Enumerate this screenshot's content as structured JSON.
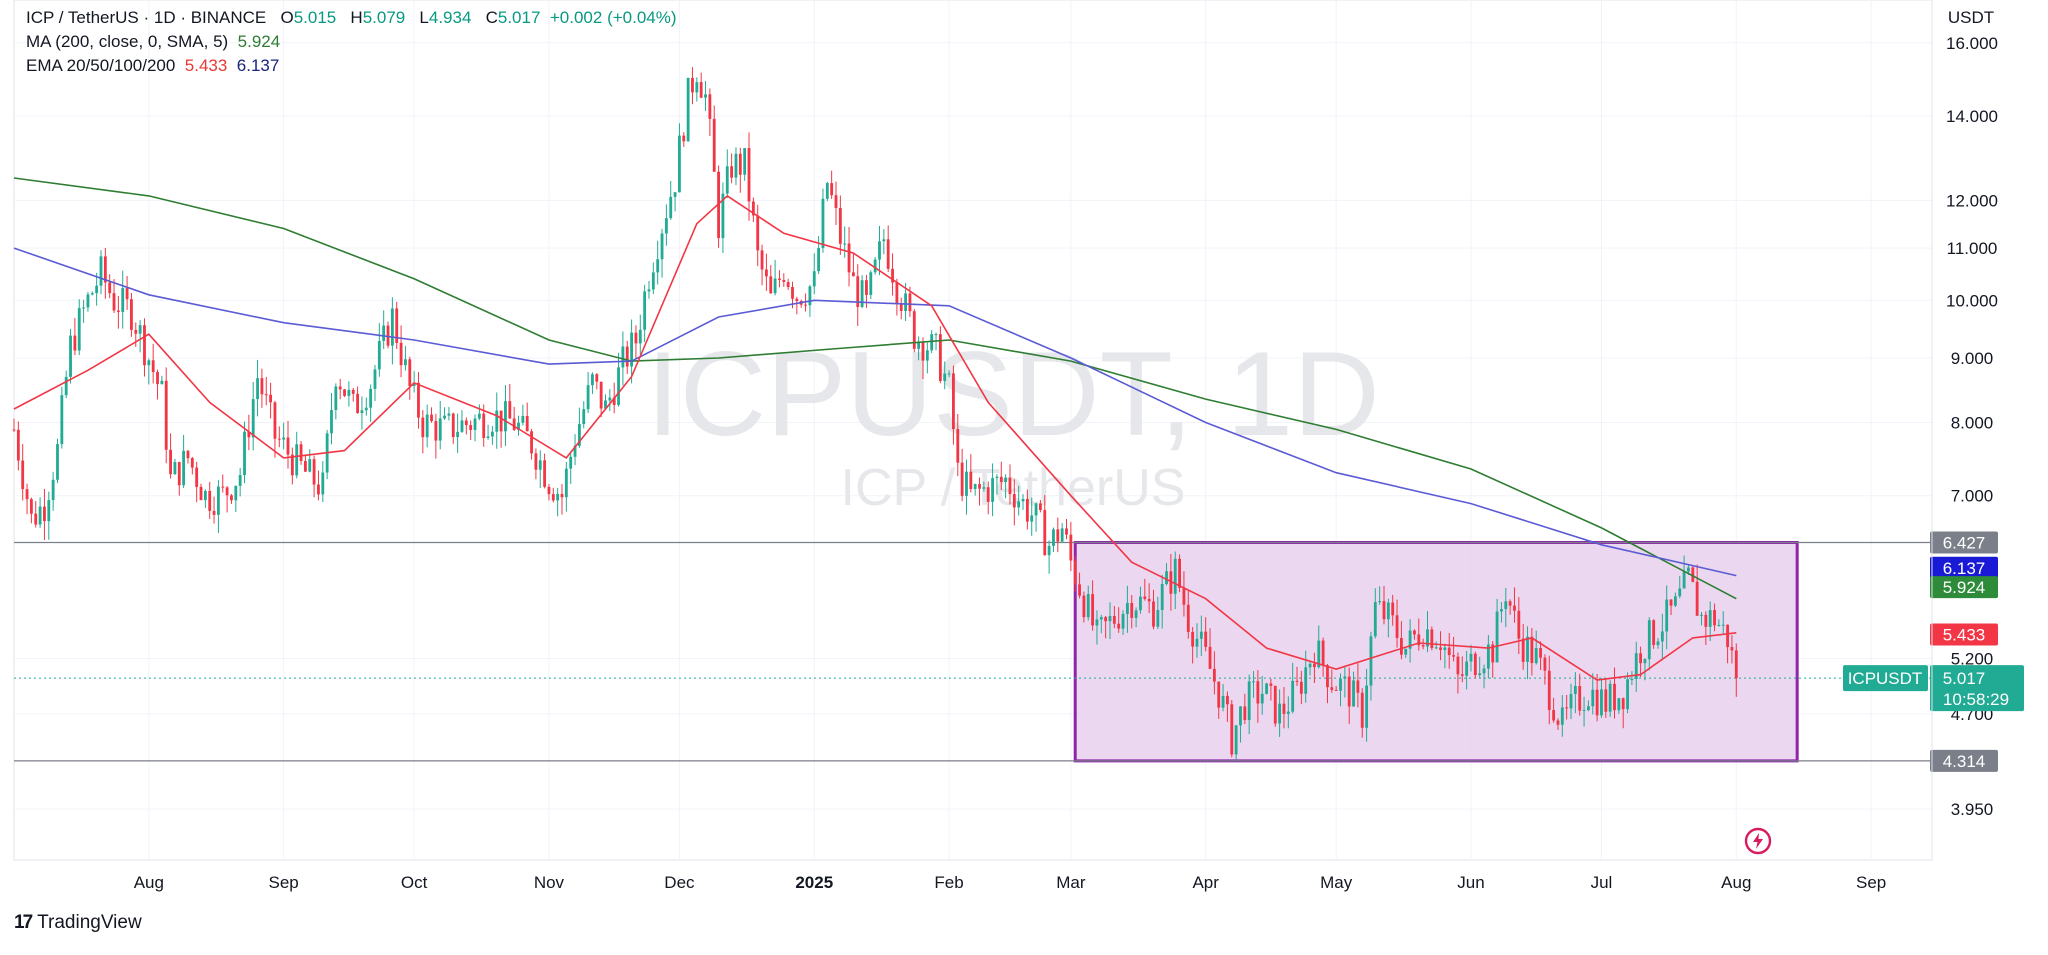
{
  "header": {
    "symbol": "ICP / TetherUS · 1D · BINANCE",
    "o_label": "O",
    "o_value": "5.015",
    "h_label": "H",
    "h_value": "5.079",
    "l_label": "L",
    "l_value": "4.934",
    "c_label": "C",
    "c_value": "5.017",
    "change": "+0.002 (+0.04%)",
    "ma_label": "MA (200, close, 0, SMA, 5)",
    "ma_value": "5.924",
    "ema_label": "EMA 20/50/100/200",
    "ema_value_1": "5.433",
    "ema_value_2": "6.137"
  },
  "watermark": {
    "title": "ICPUSDT, 1D",
    "subtitle": "ICP / TetherUS"
  },
  "footer": {
    "brand": "TradingView",
    "brand_mark": "17"
  },
  "colors": {
    "up": "#22ab94",
    "down": "#f23645",
    "ema20": "#f23645",
    "ema_blue": "#5b5bd6",
    "ma200": "#2e7d32",
    "range_box_fill": "#e9d3ee",
    "range_box_border": "#8e24aa",
    "ticker_badge": "#22ab94",
    "gray_badge": "#7b7f89",
    "blue_badge": "#1a1ad6",
    "green_badge": "#2e8b3a",
    "red_badge": "#f23645"
  },
  "chart_data": {
    "type": "candlestick",
    "title": "ICP / TetherUS · 1D · BINANCE",
    "y_unit": "USDT",
    "y_scale": "log",
    "ylim": [
      3.6,
      17.3
    ],
    "x_start": "2024-07-01",
    "x_end": "2025-09-15",
    "y_ticks": [
      "16.000",
      "14.000",
      "12.000",
      "11.000",
      "10.000",
      "9.000",
      "8.000",
      "7.000",
      "5.200",
      "4.700",
      "3.950"
    ],
    "y_tick_values": [
      16,
      14,
      12,
      11,
      10,
      9,
      8,
      7,
      5.2,
      4.7,
      3.95
    ],
    "x_tick_labels": [
      "Aug",
      "Sep",
      "Oct",
      "Nov",
      "Dec",
      "2025",
      "Feb",
      "Mar",
      "Apr",
      "May",
      "Jun",
      "Jul",
      "Aug",
      "Sep"
    ],
    "x_tick_dates": [
      "2024-08-01",
      "2024-09-01",
      "2024-10-01",
      "2024-11-01",
      "2024-12-01",
      "2025-01-01",
      "2025-02-01",
      "2025-03-01",
      "2025-04-01",
      "2025-05-01",
      "2025-06-01",
      "2025-07-01",
      "2025-08-01",
      "2025-09-01"
    ],
    "close_path": [
      [
        "2024-07-01",
        7.9
      ],
      [
        "2024-07-05",
        6.7
      ],
      [
        "2024-07-08",
        6.9
      ],
      [
        "2024-07-11",
        7.6
      ],
      [
        "2024-07-14",
        9.2
      ],
      [
        "2024-07-18",
        10.0
      ],
      [
        "2024-07-21",
        10.5
      ],
      [
        "2024-07-24",
        10.0
      ],
      [
        "2024-07-28",
        9.8
      ],
      [
        "2024-08-01",
        9.0
      ],
      [
        "2024-08-04",
        8.4
      ],
      [
        "2024-08-06",
        7.2
      ],
      [
        "2024-08-10",
        7.5
      ],
      [
        "2024-08-14",
        7.0
      ],
      [
        "2024-08-18",
        7.0
      ],
      [
        "2024-08-22",
        7.3
      ],
      [
        "2024-08-26",
        8.7
      ],
      [
        "2024-08-30",
        7.8
      ],
      [
        "2024-09-03",
        7.5
      ],
      [
        "2024-09-06",
        7.3
      ],
      [
        "2024-09-10",
        7.1
      ],
      [
        "2024-09-13",
        8.8
      ],
      [
        "2024-09-17",
        8.2
      ],
      [
        "2024-09-21",
        8.6
      ],
      [
        "2024-09-26",
        9.7
      ],
      [
        "2024-09-30",
        8.5
      ],
      [
        "2024-10-03",
        8.0
      ],
      [
        "2024-10-08",
        7.9
      ],
      [
        "2024-10-14",
        8.0
      ],
      [
        "2024-10-19",
        8.1
      ],
      [
        "2024-10-24",
        8.0
      ],
      [
        "2024-10-28",
        7.7
      ],
      [
        "2024-11-01",
        7.2
      ],
      [
        "2024-11-04",
        7.0
      ],
      [
        "2024-11-07",
        7.8
      ],
      [
        "2024-11-11",
        8.6
      ],
      [
        "2024-11-14",
        8.2
      ],
      [
        "2024-11-18",
        8.9
      ],
      [
        "2024-11-21",
        9.3
      ],
      [
        "2024-11-24",
        10.5
      ],
      [
        "2024-11-27",
        11.5
      ],
      [
        "2024-11-30",
        12.5
      ],
      [
        "2024-12-03",
        14.5
      ],
      [
        "2024-12-05",
        15.3
      ],
      [
        "2024-12-07",
        14.5
      ],
      [
        "2024-12-10",
        11.5
      ],
      [
        "2024-12-13",
        12.8
      ],
      [
        "2024-12-16",
        12.8
      ],
      [
        "2024-12-19",
        10.8
      ],
      [
        "2024-12-22",
        10.0
      ],
      [
        "2024-12-25",
        10.6
      ],
      [
        "2024-12-28",
        10.1
      ],
      [
        "2025-01-01",
        10.3
      ],
      [
        "2025-01-04",
        12.4
      ],
      [
        "2025-01-07",
        11.2
      ],
      [
        "2025-01-10",
        10.3
      ],
      [
        "2025-01-13",
        9.9
      ],
      [
        "2025-01-17",
        11.2
      ],
      [
        "2025-01-20",
        10.3
      ],
      [
        "2025-01-24",
        9.4
      ],
      [
        "2025-01-29",
        9.1
      ],
      [
        "2025-02-01",
        8.5
      ],
      [
        "2025-02-03",
        7.3
      ],
      [
        "2025-02-06",
        7.0
      ],
      [
        "2025-02-10",
        7.1
      ],
      [
        "2025-02-14",
        7.2
      ],
      [
        "2025-02-18",
        6.9
      ],
      [
        "2025-02-21",
        6.7
      ],
      [
        "2025-02-24",
        6.4
      ],
      [
        "2025-02-27",
        6.6
      ],
      [
        "2025-03-01",
        6.2
      ],
      [
        "2025-03-04",
        5.8
      ],
      [
        "2025-03-07",
        5.4
      ],
      [
        "2025-03-11",
        5.6
      ],
      [
        "2025-03-15",
        5.8
      ],
      [
        "2025-03-20",
        5.7
      ],
      [
        "2025-03-25",
        6.1
      ],
      [
        "2025-03-28",
        5.6
      ],
      [
        "2025-04-01",
        5.2
      ],
      [
        "2025-04-04",
        4.9
      ],
      [
        "2025-04-07",
        4.5
      ],
      [
        "2025-04-10",
        4.8
      ],
      [
        "2025-04-14",
        4.9
      ],
      [
        "2025-04-18",
        4.7
      ],
      [
        "2025-04-22",
        4.9
      ],
      [
        "2025-04-26",
        5.3
      ],
      [
        "2025-04-30",
        5.0
      ],
      [
        "2025-05-04",
        4.9
      ],
      [
        "2025-05-07",
        4.7
      ],
      [
        "2025-05-10",
        5.7
      ],
      [
        "2025-05-13",
        5.6
      ],
      [
        "2025-05-17",
        5.3
      ],
      [
        "2025-05-21",
        5.5
      ],
      [
        "2025-05-25",
        5.4
      ],
      [
        "2025-05-29",
        5.0
      ],
      [
        "2025-06-02",
        5.2
      ],
      [
        "2025-06-06",
        5.3
      ],
      [
        "2025-06-09",
        5.9
      ],
      [
        "2025-06-12",
        5.4
      ],
      [
        "2025-06-16",
        5.2
      ],
      [
        "2025-06-19",
        4.9
      ],
      [
        "2025-06-22",
        4.6
      ],
      [
        "2025-06-25",
        4.8
      ],
      [
        "2025-06-28",
        4.9
      ],
      [
        "2025-07-02",
        4.8
      ],
      [
        "2025-07-06",
        4.9
      ],
      [
        "2025-07-10",
        5.3
      ],
      [
        "2025-07-14",
        5.5
      ],
      [
        "2025-07-18",
        5.7
      ],
      [
        "2025-07-21",
        6.0
      ],
      [
        "2025-07-24",
        5.6
      ],
      [
        "2025-07-27",
        5.6
      ],
      [
        "2025-07-30",
        5.4
      ],
      [
        "2025-08-01",
        5.02
      ]
    ],
    "lines": [
      {
        "name": "MA (200, close, 0, SMA, 5)",
        "color": "#2e7d32",
        "points": [
          [
            "2024-07-01",
            12.5
          ],
          [
            "2024-08-01",
            12.1
          ],
          [
            "2024-09-01",
            11.4
          ],
          [
            "2024-10-01",
            10.4
          ],
          [
            "2024-11-01",
            9.3
          ],
          [
            "2024-11-20",
            8.95
          ],
          [
            "2024-12-10",
            9.0
          ],
          [
            "2025-01-05",
            9.15
          ],
          [
            "2025-02-01",
            9.3
          ],
          [
            "2025-03-01",
            8.95
          ],
          [
            "2025-04-01",
            8.35
          ],
          [
            "2025-05-01",
            7.9
          ],
          [
            "2025-06-01",
            7.35
          ],
          [
            "2025-07-01",
            6.6
          ],
          [
            "2025-08-01",
            5.8
          ]
        ]
      },
      {
        "name": "EMA 200",
        "color": "#5b5bd6",
        "points": [
          [
            "2024-07-01",
            11.0
          ],
          [
            "2024-08-01",
            10.1
          ],
          [
            "2024-09-01",
            9.6
          ],
          [
            "2024-10-01",
            9.3
          ],
          [
            "2024-11-01",
            8.9
          ],
          [
            "2024-11-20",
            8.95
          ],
          [
            "2024-12-10",
            9.7
          ],
          [
            "2025-01-01",
            10.0
          ],
          [
            "2025-02-01",
            9.9
          ],
          [
            "2025-03-01",
            9.0
          ],
          [
            "2025-04-01",
            8.0
          ],
          [
            "2025-05-01",
            7.3
          ],
          [
            "2025-06-01",
            6.9
          ],
          [
            "2025-07-01",
            6.4
          ],
          [
            "2025-08-01",
            6.05
          ]
        ]
      },
      {
        "name": "EMA 20",
        "color": "#f23645",
        "points": [
          [
            "2024-07-01",
            8.2
          ],
          [
            "2024-07-18",
            8.8
          ],
          [
            "2024-08-01",
            9.4
          ],
          [
            "2024-08-15",
            8.3
          ],
          [
            "2024-09-01",
            7.5
          ],
          [
            "2024-09-15",
            7.6
          ],
          [
            "2024-10-01",
            8.6
          ],
          [
            "2024-10-20",
            8.1
          ],
          [
            "2024-11-05",
            7.5
          ],
          [
            "2024-11-20",
            8.7
          ],
          [
            "2024-12-05",
            11.5
          ],
          [
            "2024-12-12",
            12.1
          ],
          [
            "2024-12-25",
            11.3
          ],
          [
            "2025-01-10",
            10.9
          ],
          [
            "2025-01-28",
            9.9
          ],
          [
            "2025-02-10",
            8.3
          ],
          [
            "2025-03-01",
            7.0
          ],
          [
            "2025-03-15",
            6.2
          ],
          [
            "2025-04-01",
            5.8
          ],
          [
            "2025-04-15",
            5.3
          ],
          [
            "2025-05-01",
            5.1
          ],
          [
            "2025-05-20",
            5.35
          ],
          [
            "2025-06-05",
            5.3
          ],
          [
            "2025-06-15",
            5.4
          ],
          [
            "2025-06-30",
            5.0
          ],
          [
            "2025-07-10",
            5.05
          ],
          [
            "2025-07-22",
            5.4
          ],
          [
            "2025-08-01",
            5.45
          ]
        ]
      }
    ],
    "horizontal_lines": [
      {
        "value": 6.427,
        "label": "6.427",
        "color": "#7b7f89"
      },
      {
        "value": 4.314,
        "label": "4.314",
        "color": "#7b7f89"
      }
    ],
    "range_box": {
      "start": "2025-03-02",
      "end": "2025-08-15",
      "top": 6.427,
      "bottom": 4.314
    },
    "price_badges": [
      {
        "value": 6.427,
        "label": "6.427",
        "color": "#7b7f89"
      },
      {
        "value": 6.137,
        "label": "6.137",
        "color": "#1a1ad6"
      },
      {
        "value": 5.924,
        "label": "5.924",
        "color": "#2e8b3a"
      },
      {
        "value": 5.433,
        "label": "5.433",
        "color": "#f23645"
      },
      {
        "value": 4.314,
        "label": "4.314",
        "color": "#7b7f89"
      }
    ],
    "last_price": {
      "value": 5.017,
      "label": "5.017",
      "countdown": "10:58:29",
      "ticker": "ICPUSDT"
    }
  }
}
